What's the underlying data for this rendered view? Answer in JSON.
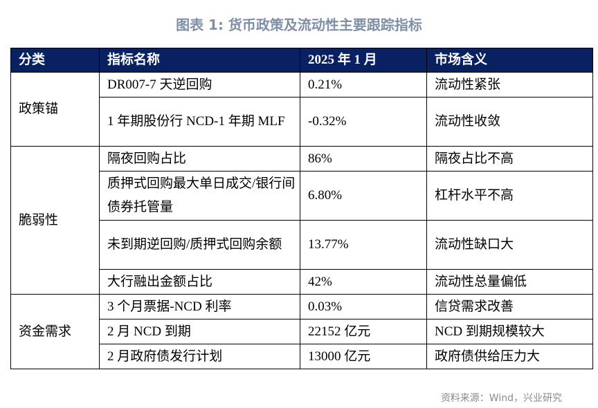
{
  "title": "图表 1:  货币政策及流动性主要跟踪指标",
  "headers": [
    "分类",
    "指标名称",
    "2025 年 1 月",
    "市场含义"
  ],
  "groups": [
    {
      "category": "政策锚",
      "rows": [
        {
          "indicator": "DR007-7 天逆回购",
          "value": "0.21%",
          "meaning": "流动性紧张"
        },
        {
          "indicator": "1 年期股份行 NCD-1 年期 MLF",
          "value": "-0.32%",
          "meaning": "流动性收敛"
        }
      ]
    },
    {
      "category": "脆弱性",
      "rows": [
        {
          "indicator": "隔夜回购占比",
          "value": "86%",
          "meaning": "隔夜占比不高"
        },
        {
          "indicator": "质押式回购最大单日成交/银行间债券托管量",
          "value": "6.80%",
          "meaning": "杠杆水平不高"
        },
        {
          "indicator": "未到期逆回购/质押式回购余额",
          "value": "13.77%",
          "meaning": "流动性缺口大"
        },
        {
          "indicator": "大行融出金额占比",
          "value": "42%",
          "meaning": "流动性总量偏低"
        }
      ]
    },
    {
      "category": "资金需求",
      "rows": [
        {
          "indicator": "3 个月票据-NCD 利率",
          "value": "0.03%",
          "meaning": "信贷需求改善"
        },
        {
          "indicator": "2 月 NCD 到期",
          "value": "22152 亿元",
          "meaning": "NCD 到期规模较大"
        },
        {
          "indicator": "2 月政府债发行计划",
          "value": "13000 亿元",
          "meaning": "政府债供给压力大"
        }
      ]
    }
  ],
  "source": "资料来源：Wind，兴业研究",
  "colors": {
    "header_bg": "#0a2161",
    "title": "#7f8fa6"
  }
}
